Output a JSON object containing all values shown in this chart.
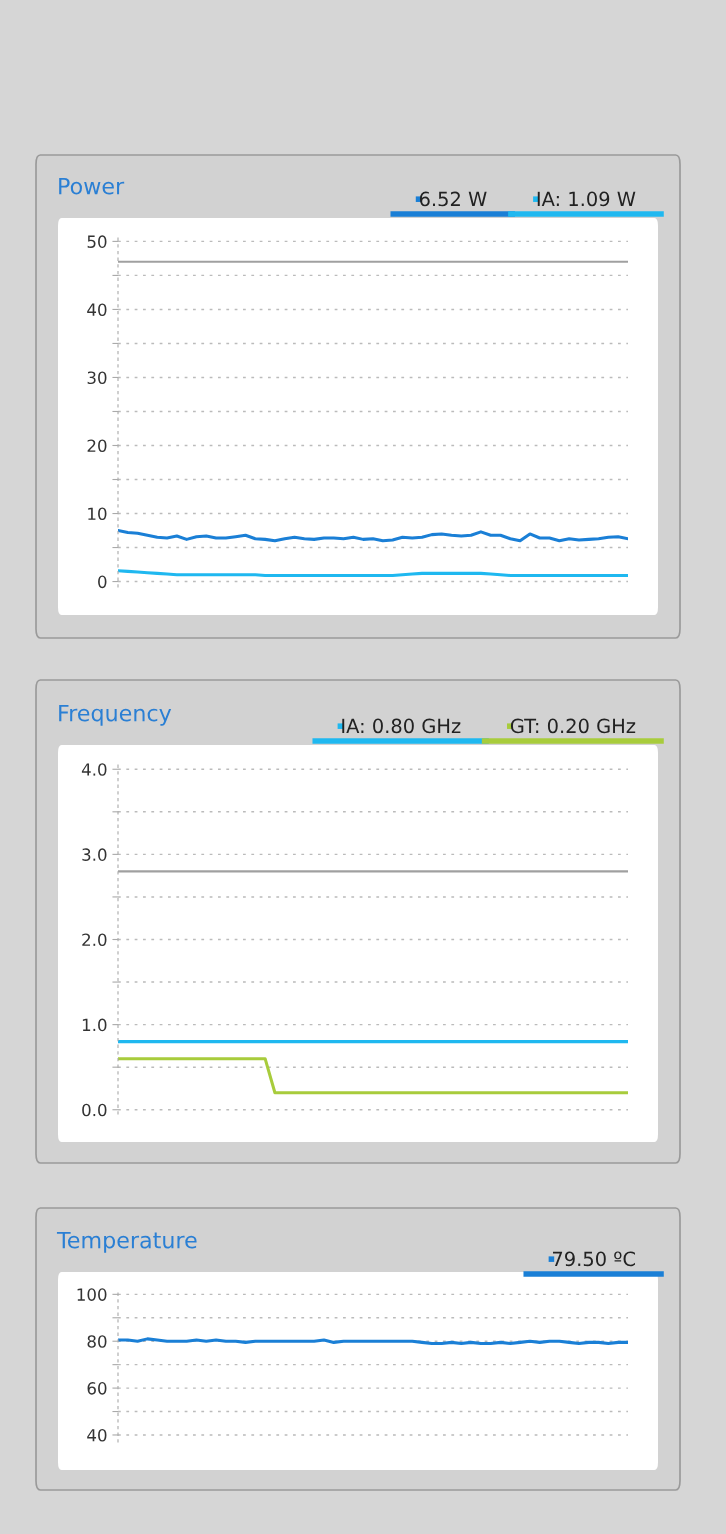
{
  "chart_data": [
    {
      "type": "line",
      "title": "Power",
      "categories": [
        null,
        null,
        null,
        null,
        null,
        null,
        null,
        null,
        null,
        null,
        null,
        null,
        null,
        null,
        null,
        null,
        null,
        null,
        null,
        null,
        null,
        null,
        null,
        null,
        null,
        null,
        null,
        null,
        null,
        null,
        null,
        null,
        null,
        null,
        null,
        null,
        null,
        null,
        null,
        null,
        null,
        null,
        null,
        null,
        null,
        null,
        null,
        null,
        null,
        null,
        null,
        null,
        null
      ],
      "series": [
        {
          "name": "6.52 W",
          "color": "#1a7fd6",
          "values": [
            7.5,
            7.2,
            7.1,
            6.8,
            6.5,
            6.4,
            6.7,
            6.2,
            6.6,
            6.7,
            6.4,
            6.4,
            6.6,
            6.8,
            6.3,
            6.2,
            6.0,
            6.3,
            6.5,
            6.3,
            6.2,
            6.4,
            6.4,
            6.3,
            6.5,
            6.2,
            6.3,
            6.0,
            6.1,
            6.5,
            6.4,
            6.5,
            6.9,
            7.0,
            6.8,
            6.7,
            6.8,
            7.3,
            6.8,
            6.8,
            6.3,
            6.0,
            7.0,
            6.4,
            6.4,
            6.0,
            6.3,
            6.1,
            6.2,
            6.3,
            6.5,
            6.6,
            6.3
          ]
        },
        {
          "name": "IA: 1.09 W",
          "color": "#1fb8f0",
          "values": [
            1.6,
            1.5,
            1.4,
            1.3,
            1.2,
            1.1,
            1.0,
            1.0,
            1.0,
            1.0,
            1.0,
            1.0,
            1.0,
            1.0,
            1.0,
            0.9,
            0.9,
            0.9,
            0.9,
            0.9,
            0.9,
            0.9,
            0.9,
            0.9,
            0.9,
            0.9,
            0.9,
            0.9,
            0.9,
            1.0,
            1.1,
            1.2,
            1.2,
            1.2,
            1.2,
            1.2,
            1.2,
            1.2,
            1.1,
            1.0,
            0.9,
            0.9,
            0.9,
            0.9,
            0.9,
            0.9,
            0.9,
            0.9,
            0.9,
            0.9,
            0.9,
            0.9,
            0.9
          ]
        }
      ],
      "ref_lines": [
        {
          "axis": "y",
          "value": 47,
          "color": "#a0a0a0"
        }
      ],
      "ylim": [
        -0.8,
        50.5
      ],
      "yticks": [
        0,
        {
          "value": 5,
          "label": null
        },
        10,
        {
          "value": 15,
          "label": null
        },
        20,
        {
          "value": 25,
          "label": null
        },
        30,
        {
          "value": 35,
          "label": null
        },
        40,
        {
          "value": 45,
          "label": null
        },
        50
      ],
      "grid": "y",
      "legend": "top right",
      "tick_labels": "y"
    },
    {
      "type": "line",
      "title": "Frequency",
      "categories": [
        null,
        null,
        null,
        null,
        null,
        null,
        null,
        null,
        null,
        null,
        null,
        null,
        null,
        null,
        null,
        null,
        null,
        null,
        null,
        null,
        null,
        null,
        null,
        null,
        null,
        null,
        null,
        null,
        null,
        null,
        null,
        null,
        null,
        null,
        null,
        null,
        null,
        null,
        null,
        null,
        null,
        null,
        null,
        null,
        null,
        null,
        null,
        null,
        null,
        null,
        null,
        null,
        null
      ],
      "series": [
        {
          "name": "IA: 0.80 GHz",
          "color": "#1fb8f0",
          "values": [
            0.8,
            0.8,
            0.8,
            0.8,
            0.8,
            0.8,
            0.8,
            0.8,
            0.8,
            0.8,
            0.8,
            0.8,
            0.8,
            0.8,
            0.8,
            0.8,
            0.8,
            0.8,
            0.8,
            0.8,
            0.8,
            0.8,
            0.8,
            0.8,
            0.8,
            0.8,
            0.8,
            0.8,
            0.8,
            0.8,
            0.8,
            0.8,
            0.8,
            0.8,
            0.8,
            0.8,
            0.8,
            0.8,
            0.8,
            0.8,
            0.8,
            0.8,
            0.8,
            0.8,
            0.8,
            0.8,
            0.8,
            0.8,
            0.8,
            0.8,
            0.8,
            0.8,
            0.8
          ]
        },
        {
          "name": "GT: 0.20 GHz",
          "color": "#a8cc3c",
          "values": [
            0.6,
            0.6,
            0.6,
            0.6,
            0.6,
            0.6,
            0.6,
            0.6,
            0.6,
            0.6,
            0.6,
            0.6,
            0.6,
            0.6,
            0.6,
            0.6,
            0.2,
            0.2,
            0.2,
            0.2,
            0.2,
            0.2,
            0.2,
            0.2,
            0.2,
            0.2,
            0.2,
            0.2,
            0.2,
            0.2,
            0.2,
            0.2,
            0.2,
            0.2,
            0.2,
            0.2,
            0.2,
            0.2,
            0.2,
            0.2,
            0.2,
            0.2,
            0.2,
            0.2,
            0.2,
            0.2,
            0.2,
            0.2,
            0.2,
            0.2,
            0.2,
            0.2,
            0.2
          ]
        }
      ],
      "ref_lines": [
        {
          "axis": "y",
          "value": 2.8,
          "color": "#a0a0a0"
        }
      ],
      "ylim": [
        -0.05,
        4.05
      ],
      "yticks": [
        {
          "value": 0,
          "label": "0.0"
        },
        {
          "value": 0.5,
          "label": null
        },
        {
          "value": 1,
          "label": "1.0"
        },
        {
          "value": 1.5,
          "label": null
        },
        {
          "value": 2,
          "label": "2.0"
        },
        {
          "value": 2.5,
          "label": null
        },
        {
          "value": 3,
          "label": "3.0"
        },
        {
          "value": 3.5,
          "label": null
        },
        {
          "value": 4,
          "label": "4.0"
        }
      ],
      "grid": "y",
      "legend": "top right",
      "tick_labels": "y"
    },
    {
      "type": "line",
      "title": "Temperature",
      "categories": [
        null,
        null,
        null,
        null,
        null,
        null,
        null,
        null,
        null,
        null,
        null,
        null,
        null,
        null,
        null,
        null,
        null,
        null,
        null,
        null,
        null,
        null,
        null,
        null,
        null,
        null,
        null,
        null,
        null,
        null,
        null,
        null,
        null,
        null,
        null,
        null,
        null,
        null,
        null,
        null,
        null,
        null,
        null,
        null,
        null,
        null,
        null,
        null,
        null,
        null,
        null,
        null,
        null
      ],
      "series": [
        {
          "name": "79.50 ºC",
          "color": "#1a7fd6",
          "values": [
            80.5,
            80.5,
            80.0,
            81.0,
            80.5,
            80,
            80,
            80,
            80.5,
            80,
            80.5,
            80,
            80,
            79.5,
            80,
            80,
            80,
            80,
            80,
            80,
            80,
            80.5,
            79.5,
            80,
            80,
            80,
            80,
            80,
            80,
            80,
            80,
            79.5,
            79,
            79,
            79.5,
            79,
            79.5,
            79,
            79,
            79.5,
            79,
            79.5,
            80,
            79.5,
            80,
            80,
            79.5,
            79,
            79.5,
            79.5,
            79,
            79.5,
            79.5
          ]
        }
      ],
      "ylim": [
        37,
        101
      ],
      "yticks": [
        40,
        {
          "value": 50,
          "label": null
        },
        60,
        {
          "value": 70,
          "label": null
        },
        80,
        {
          "value": 90,
          "label": null
        },
        100
      ],
      "grid": "y",
      "legend": "top right",
      "tick_labels": "y"
    }
  ]
}
